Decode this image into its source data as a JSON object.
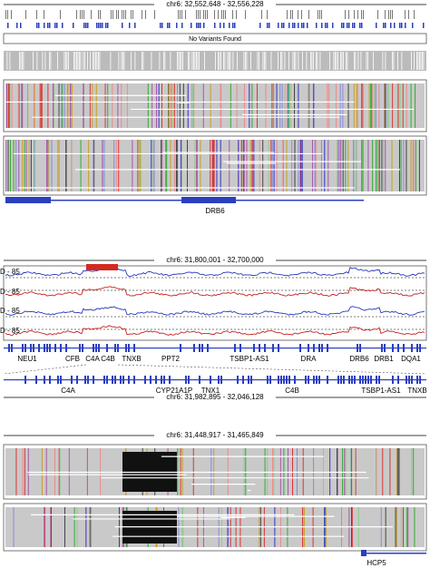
{
  "panels": [
    {
      "locus": "chr6: 32,552,648 - 32,556,228",
      "message": "No Variants Found",
      "gene": "DRB6"
    },
    {
      "locus": "chr6: 31,800,001 - 32,700,000",
      "track_labels": [
        "D - 85",
        "D - 85",
        "D - 85",
        "D - 85"
      ],
      "genes": [
        "NEU1",
        "CFB",
        "C4A",
        "C4B",
        "TNXB",
        "PPT2",
        "TSBP1-AS1",
        "DRA",
        "DRB6",
        "DRB1",
        "DQA1"
      ],
      "zoom_genes": [
        "C4A",
        "CYP21A1P",
        "TNX1",
        "C4B",
        "TSBP1-AS1",
        "TNXB"
      ],
      "zoom_locus": "chr6: 31,982,895 - 32,046,128"
    },
    {
      "locus": "chr6: 31,448,917 - 31,465,849",
      "gene": "HCP5"
    }
  ]
}
